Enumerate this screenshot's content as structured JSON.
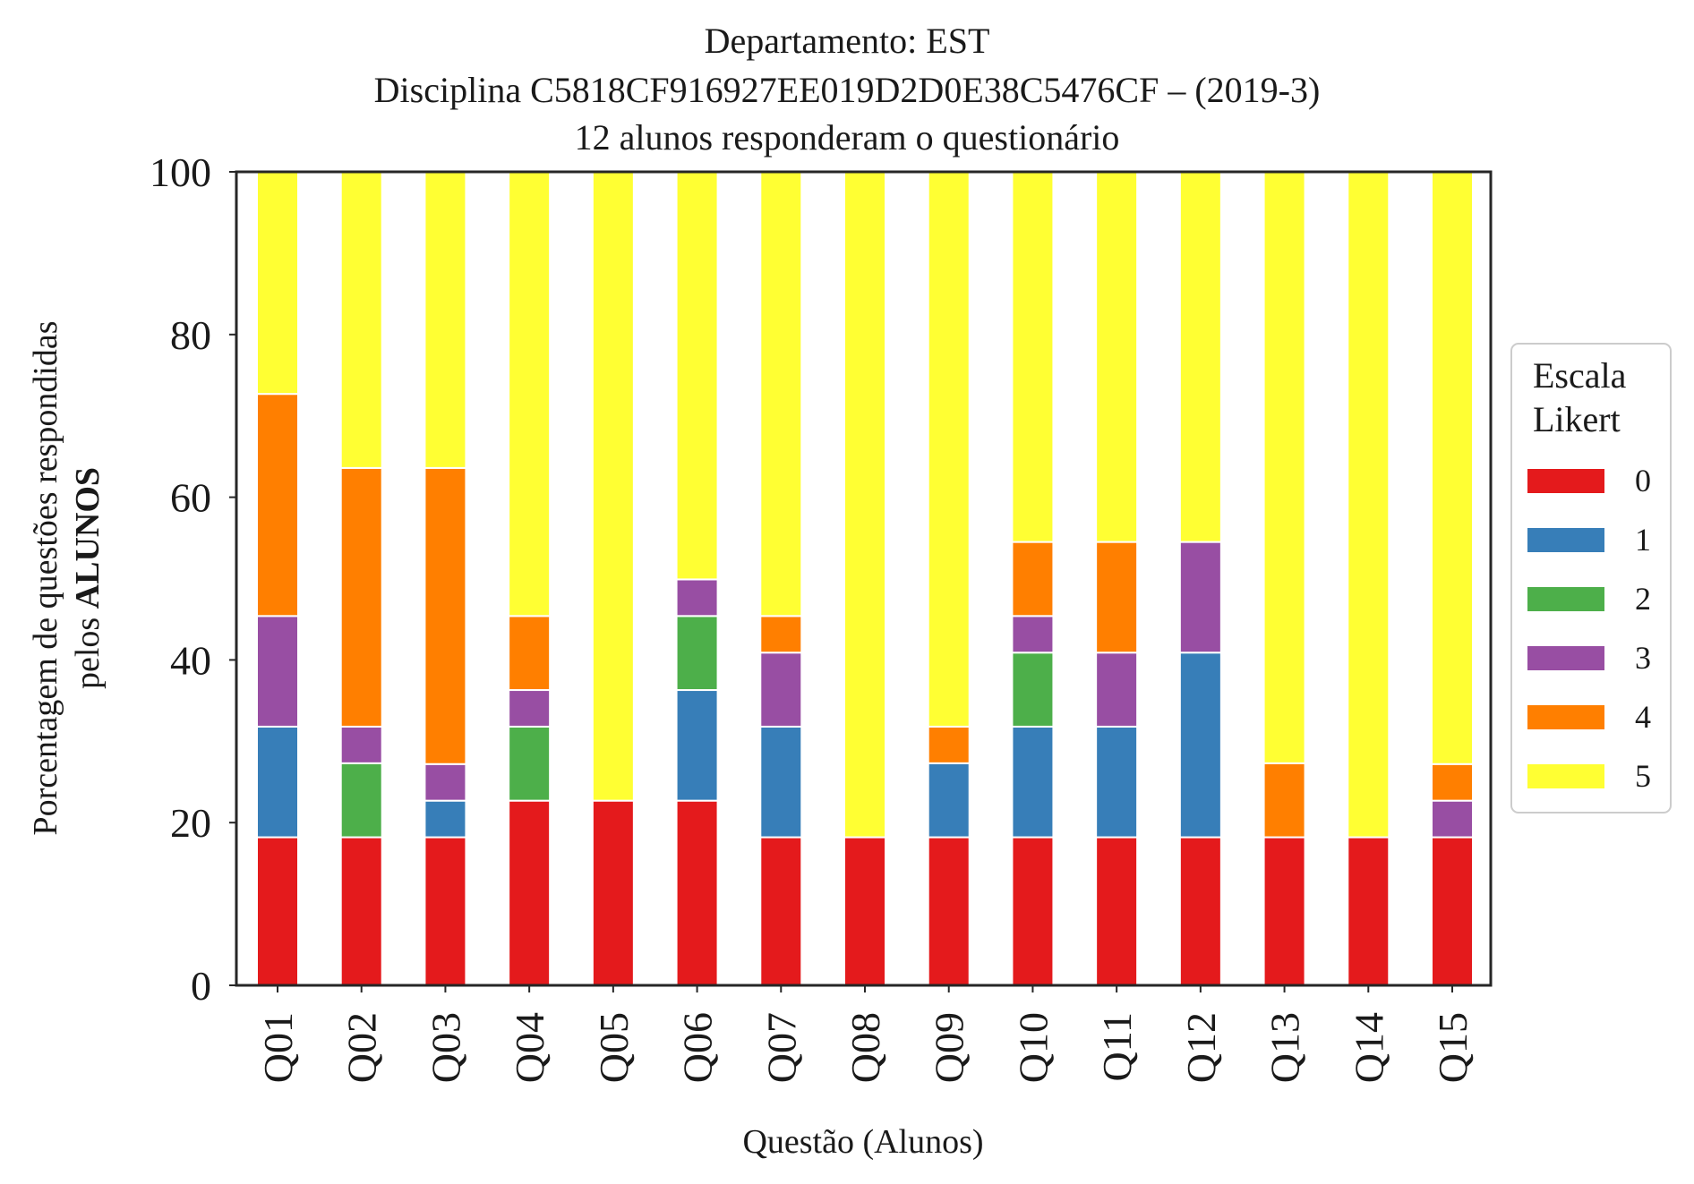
{
  "title_lines": [
    "Departamento: EST",
    "Disciplina C5818CF916927EE019D2D0E38C5476CF – (2019-3)",
    "12 alunos responderam o questionário"
  ],
  "chart_data": {
    "type": "bar",
    "stacked": true,
    "title": "Departamento: EST\nDisciplina C5818CF916927EE019D2D0E38C5476CF – (2019-3)\n12 alunos responderam o questionário",
    "xlabel": "Questão (Alunos)",
    "ylabel_line1": "Porcentagem de questões respondidas",
    "ylabel_line2_prefix": "pelos ",
    "ylabel_line2_bold": "ALUNOS",
    "ylim": [
      0,
      100
    ],
    "yticks": [
      0,
      20,
      40,
      60,
      80,
      100
    ],
    "grid": false,
    "legend_title": [
      "Escala",
      "Likert"
    ],
    "legend_position": "right",
    "categories": [
      "Q01",
      "Q02",
      "Q03",
      "Q04",
      "Q05",
      "Q06",
      "Q07",
      "Q08",
      "Q09",
      "Q10",
      "Q11",
      "Q12",
      "Q13",
      "Q14",
      "Q15"
    ],
    "series": [
      {
        "name": "0",
        "color": "#e41a1c",
        "values": [
          18.2,
          18.2,
          18.2,
          22.7,
          22.7,
          22.7,
          18.2,
          18.2,
          18.2,
          18.2,
          18.2,
          18.2,
          18.2,
          18.2,
          18.2
        ]
      },
      {
        "name": "1",
        "color": "#377eb8",
        "values": [
          13.6,
          0,
          4.5,
          0,
          0,
          13.6,
          13.6,
          0,
          9.1,
          13.6,
          13.6,
          22.7,
          0,
          0,
          0
        ]
      },
      {
        "name": "2",
        "color": "#4daf4a",
        "values": [
          0,
          9.1,
          0,
          9.1,
          0,
          9.1,
          0,
          0,
          0,
          9.1,
          0,
          0,
          0,
          0,
          0
        ]
      },
      {
        "name": "3",
        "color": "#984ea3",
        "values": [
          13.6,
          4.5,
          4.5,
          4.5,
          0,
          4.5,
          9.1,
          0,
          0,
          4.5,
          9.1,
          13.6,
          0,
          0,
          4.5
        ]
      },
      {
        "name": "4",
        "color": "#ff7f00",
        "values": [
          27.3,
          31.8,
          36.4,
          9.1,
          0,
          0,
          4.5,
          0,
          4.5,
          9.1,
          13.6,
          0,
          9.1,
          0,
          4.5
        ]
      },
      {
        "name": "5",
        "color": "#ffff33",
        "values": [
          27.3,
          36.4,
          36.4,
          54.6,
          77.3,
          50.1,
          54.6,
          81.8,
          68.2,
          45.5,
          45.5,
          45.5,
          72.7,
          81.8,
          72.8
        ]
      }
    ]
  }
}
